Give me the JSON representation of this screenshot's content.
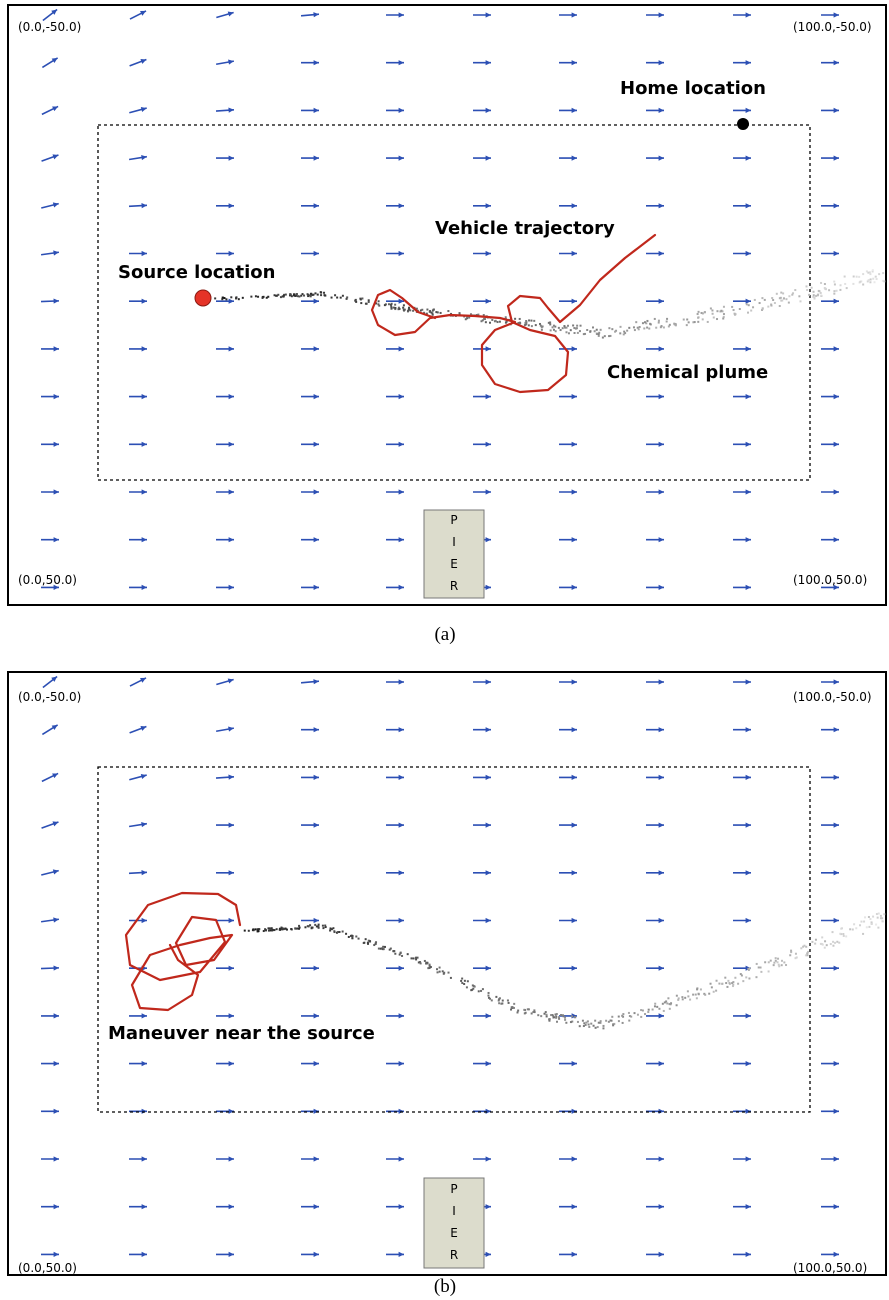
{
  "panels": [
    {
      "corners": {
        "top_left": "(0.0,-50.0)",
        "top_right": "(100.0,-50.0)",
        "bottom_left": "(0.0,50.0)",
        "bottom_right": "(100.0,50.0)"
      },
      "labels": {
        "home": "Home location",
        "trajectory": "Vehicle trajectory",
        "source": "Source location",
        "plume": "Chemical plume"
      },
      "pier": [
        "P",
        "I",
        "E",
        "R"
      ],
      "caption": "(a)"
    },
    {
      "corners": {
        "top_left": "(0.0,-50.0)",
        "top_right": "(100.0,-50.0)",
        "bottom_left": "(0.0,50.0)",
        "bottom_right": "(100.0,50.0)"
      },
      "labels": {
        "maneuver": "Maneuver near the source"
      },
      "pier": [
        "P",
        "I",
        "E",
        "R"
      ],
      "caption": "(b)"
    }
  ]
}
